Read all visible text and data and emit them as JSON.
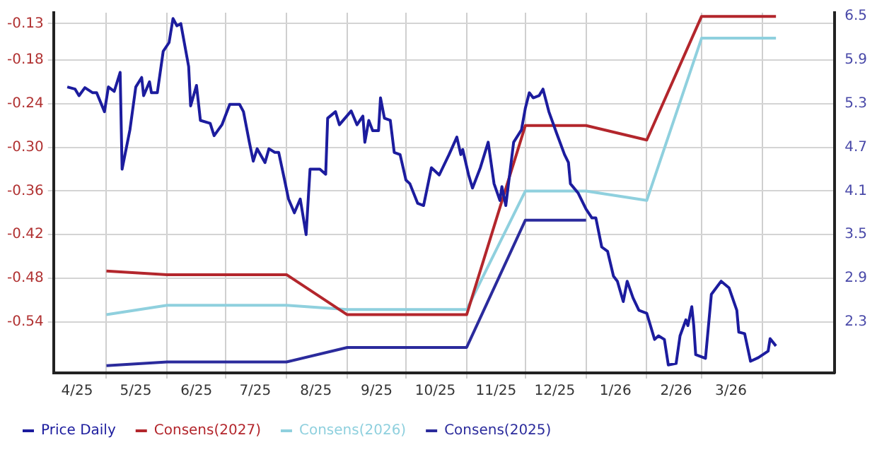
{
  "chart_data": {
    "type": "line",
    "legend": "bottom left",
    "grid": true,
    "marker": "none",
    "line_style": "solid",
    "xlim": [
      "2025-04-04",
      "2026-05-08"
    ],
    "xticks": [
      {
        "value": "2025-04-16",
        "label": "4/25"
      },
      {
        "value": "2025-05-01",
        "label": null
      },
      {
        "value": "2025-05-16",
        "label": "5/25"
      },
      {
        "value": "2025-06-01",
        "label": null
      },
      {
        "value": "2025-06-16",
        "label": "6/25"
      },
      {
        "value": "2025-07-01",
        "label": null
      },
      {
        "value": "2025-07-16",
        "label": "7/25"
      },
      {
        "value": "2025-08-01",
        "label": null
      },
      {
        "value": "2025-08-16",
        "label": "8/25"
      },
      {
        "value": "2025-09-01",
        "label": null
      },
      {
        "value": "2025-09-16",
        "label": "9/25"
      },
      {
        "value": "2025-10-01",
        "label": null
      },
      {
        "value": "2025-10-16",
        "label": "10/25"
      },
      {
        "value": "2025-11-01",
        "label": null
      },
      {
        "value": "2025-11-16",
        "label": "11/25"
      },
      {
        "value": "2025-12-01",
        "label": null
      },
      {
        "value": "2025-12-16",
        "label": "12/25"
      },
      {
        "value": "2026-01-01",
        "label": null
      },
      {
        "value": "2026-01-16",
        "label": "1/26"
      },
      {
        "value": "2026-02-01",
        "label": null
      },
      {
        "value": "2026-02-16",
        "label": "2/26"
      },
      {
        "value": "2026-03-01",
        "label": null
      },
      {
        "value": "2026-03-16",
        "label": "3/26"
      },
      {
        "value": "2026-04-01",
        "label": null
      }
    ],
    "ylim": [
      -0.61,
      -0.115
    ],
    "yticks": [
      -0.54,
      -0.48,
      -0.42,
      -0.36,
      {
        "value": -0.3,
        "label": "-0.30"
      },
      -0.24,
      -0.18,
      -0.13
    ],
    "y2lim": [
      1.6,
      6.55
    ],
    "y2ticks": [
      2.3,
      2.9,
      3.5,
      4.1,
      4.7,
      5.3,
      5.9,
      6.5
    ],
    "series": [
      {
        "name": "Price Daily",
        "color": "#1c1c9e",
        "axis": "y2",
        "x": [
          "2025-04-11",
          "2025-04-15",
          "2025-04-17",
          "2025-04-20",
          "2025-04-24",
          "2025-04-26",
          "2025-04-30",
          "2025-05-02",
          "2025-05-05",
          "2025-05-08",
          "2025-05-09",
          "2025-05-13",
          "2025-05-16",
          "2025-05-19",
          "2025-05-20",
          "2025-05-23",
          "2025-05-24",
          "2025-05-27",
          "2025-05-30",
          "2025-06-02",
          "2025-06-04",
          "2025-06-06",
          "2025-06-08",
          "2025-06-12",
          "2025-06-13",
          "2025-06-16",
          "2025-06-18",
          "2025-06-23",
          "2025-06-25",
          "2025-06-29",
          "2025-07-03",
          "2025-07-08",
          "2025-07-10",
          "2025-07-13",
          "2025-07-15",
          "2025-07-17",
          "2025-07-21",
          "2025-07-23",
          "2025-07-26",
          "2025-07-28",
          "2025-07-31",
          "2025-08-02",
          "2025-08-05",
          "2025-08-08",
          "2025-08-11",
          "2025-08-13",
          "2025-08-18",
          "2025-08-21",
          "2025-08-22",
          "2025-08-26",
          "2025-08-28",
          "2025-09-03",
          "2025-09-06",
          "2025-09-09",
          "2025-09-10",
          "2025-09-12",
          "2025-09-14",
          "2025-09-17",
          "2025-09-18",
          "2025-09-20",
          "2025-09-23",
          "2025-09-25",
          "2025-09-28",
          "2025-10-01",
          "2025-10-03",
          "2025-10-07",
          "2025-10-10",
          "2025-10-14",
          "2025-10-18",
          "2025-10-23",
          "2025-10-27",
          "2025-10-29",
          "2025-10-30",
          "2025-11-02",
          "2025-11-04",
          "2025-11-08",
          "2025-11-12",
          "2025-11-15",
          "2025-11-18",
          "2025-11-19",
          "2025-11-21",
          "2025-11-25",
          "2025-11-29",
          "2025-12-01",
          "2025-12-03",
          "2025-12-05",
          "2025-12-08",
          "2025-12-10",
          "2025-12-13",
          "2025-12-17",
          "2025-12-21",
          "2025-12-23",
          "2025-12-24",
          "2025-12-28",
          "2026-01-01",
          "2026-01-04",
          "2026-01-06",
          "2026-01-09",
          "2026-01-12",
          "2026-01-15",
          "2026-01-17",
          "2026-01-20",
          "2026-01-22",
          "2026-01-25",
          "2026-01-28",
          "2026-02-01",
          "2026-02-05",
          "2026-02-07",
          "2026-02-10",
          "2026-02-12",
          "2026-02-16",
          "2026-02-18",
          "2026-02-21",
          "2026-02-22",
          "2026-02-24",
          "2026-02-25",
          "2026-02-26",
          "2026-03-03",
          "2026-03-06",
          "2026-03-11",
          "2026-03-15",
          "2026-03-19",
          "2026-03-20",
          "2026-03-23",
          "2026-03-26",
          "2026-03-30",
          "2026-04-04",
          "2026-04-05",
          "2026-04-08"
        ],
        "values": [
          5.53,
          5.5,
          5.41,
          5.52,
          5.45,
          5.45,
          5.19,
          5.53,
          5.47,
          5.73,
          4.4,
          4.94,
          5.53,
          5.66,
          5.41,
          5.6,
          5.45,
          5.45,
          6.02,
          6.14,
          6.47,
          6.37,
          6.4,
          5.81,
          5.27,
          5.55,
          5.07,
          5.03,
          4.86,
          5.01,
          5.29,
          5.29,
          5.19,
          4.77,
          4.51,
          4.68,
          4.49,
          4.68,
          4.63,
          4.63,
          4.25,
          3.99,
          3.8,
          3.99,
          3.5,
          4.4,
          4.4,
          4.33,
          5.1,
          5.19,
          5.01,
          5.2,
          5.01,
          5.13,
          4.77,
          5.07,
          4.93,
          4.93,
          5.38,
          5.1,
          5.07,
          4.63,
          4.6,
          4.25,
          4.2,
          3.93,
          3.9,
          4.42,
          4.32,
          4.6,
          4.84,
          4.6,
          4.67,
          4.32,
          4.14,
          4.42,
          4.77,
          4.2,
          3.97,
          4.16,
          3.9,
          4.77,
          4.94,
          5.24,
          5.45,
          5.38,
          5.41,
          5.5,
          5.19,
          4.89,
          4.6,
          4.49,
          4.2,
          4.07,
          3.85,
          3.73,
          3.73,
          3.33,
          3.27,
          2.93,
          2.86,
          2.58,
          2.86,
          2.63,
          2.46,
          2.42,
          2.06,
          2.11,
          2.06,
          1.71,
          1.73,
          2.11,
          2.33,
          2.25,
          2.51,
          2.25,
          1.85,
          1.8,
          2.68,
          2.86,
          2.77,
          2.46,
          2.16,
          2.14,
          1.76,
          1.81,
          1.9,
          2.07,
          1.97
        ]
      },
      {
        "name": "Consens(2027)",
        "color": "#b3262c",
        "axis": "y",
        "x": [
          "2025-05-01",
          "2025-06-01",
          "2025-08-01",
          "2025-09-01",
          "2025-11-01",
          "2025-12-01",
          "2026-01-01",
          "2026-02-01",
          "2026-03-01",
          "2026-04-08"
        ],
        "values": [
          -0.47,
          -0.475,
          -0.475,
          -0.53,
          -0.53,
          -0.27,
          -0.27,
          -0.29,
          -0.12,
          -0.12
        ]
      },
      {
        "name": "Consens(2026)",
        "color": "#8fd0de",
        "axis": "y",
        "x": [
          "2025-05-01",
          "2025-06-01",
          "2025-08-01",
          "2025-09-01",
          "2025-11-01",
          "2025-12-01",
          "2026-01-01",
          "2026-02-01",
          "2026-03-01",
          "2026-04-08"
        ],
        "values": [
          -0.53,
          -0.517,
          -0.517,
          -0.523,
          -0.523,
          -0.36,
          -0.36,
          -0.373,
          -0.15,
          -0.15
        ]
      },
      {
        "name": "Consens(2025)",
        "color": "#2b2b9c",
        "axis": "y",
        "x": [
          "2025-05-01",
          "2025-06-01",
          "2025-08-01",
          "2025-09-01",
          "2025-11-01",
          "2025-12-01",
          "2026-01-01"
        ],
        "values": [
          -0.6,
          -0.595,
          -0.595,
          -0.575,
          -0.575,
          -0.4,
          -0.4
        ]
      }
    ]
  }
}
